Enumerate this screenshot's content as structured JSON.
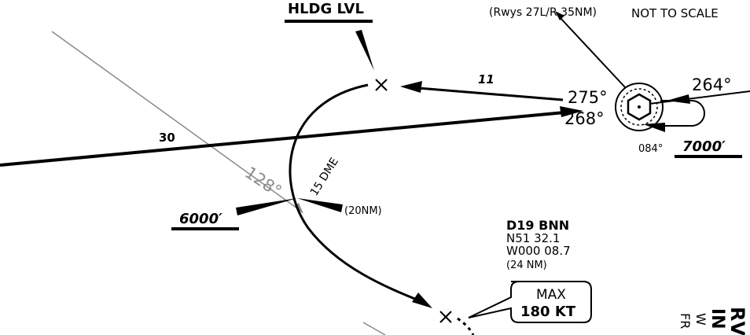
{
  "labels": {
    "hldg_lvl": "HLDG LVL",
    "rwys_note": "(Rwys 27L/R 35NM)",
    "not_to_scale": "NOT TO SCALE",
    "course_275": "275°",
    "course_268": "268°",
    "course_264": "264°",
    "course_084": "084°",
    "alt_7000": "7000′",
    "alt_6000": "6000′",
    "dist_11": "11",
    "dist_30": "30",
    "radial_128": "128°",
    "dme_15": "15 DME",
    "nm_20": "(20NM)",
    "fix_name": "D19 BNN",
    "fix_lat": "N51 32.1",
    "fix_lon": "W000 08.7",
    "fix_dist": "(24 NM)",
    "speed_max": "MAX",
    "speed_value": "180 KT",
    "edge_rv": "RV",
    "edge_in": "IN",
    "edge_w": "W",
    "edge_fr": "FR"
  }
}
